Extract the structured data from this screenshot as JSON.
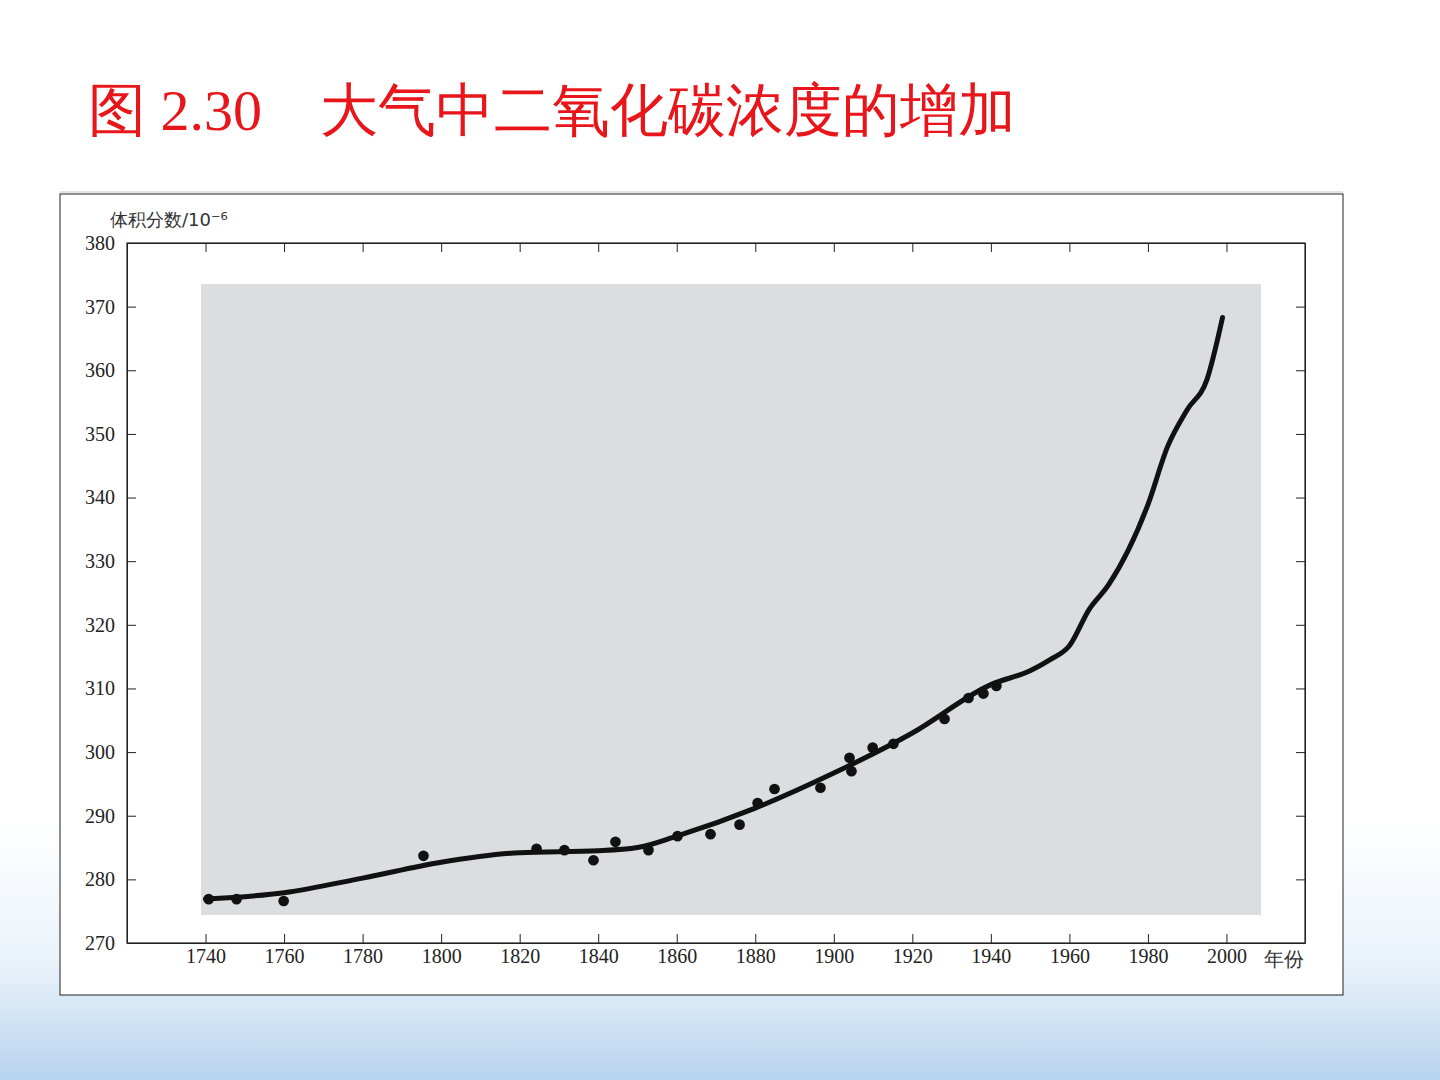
{
  "chart_data": {
    "type": "line",
    "title": "图 2.30    大气中二氧化碳浓度的增加",
    "y_label": "体积分数/10⁻⁶",
    "x_label": "年份",
    "xlim": [
      1720,
      2020
    ],
    "xticks": [
      1740,
      1760,
      1780,
      1800,
      1820,
      1840,
      1860,
      1880,
      1900,
      1920,
      1940,
      1960,
      1980,
      2000
    ],
    "ylim": [
      270,
      380
    ],
    "yticks": [
      270,
      280,
      290,
      300,
      310,
      320,
      330,
      340,
      350,
      360,
      370,
      380
    ],
    "grid": false,
    "series": [
      {
        "type": "scatter",
        "color": "#111111",
        "marker": "circle",
        "x": [
          1740.8,
          1747.9,
          1759.9,
          1795.5,
          1824.3,
          1831.4,
          1838.8,
          1844.4,
          1852.8,
          1860.2,
          1868.6,
          1876.0,
          1880.6,
          1884.9,
          1896.6,
          1904.0,
          1904.5,
          1909.9,
          1915.2,
          1928.2,
          1934.3,
          1938.1,
          1941.4
        ],
        "values": [
          276.9,
          276.9,
          276.6,
          283.7,
          284.8,
          284.6,
          283.0,
          285.9,
          284.6,
          286.8,
          287.1,
          288.6,
          292.0,
          294.2,
          294.4,
          299.1,
          297.0,
          300.7,
          301.3,
          305.2,
          308.5,
          309.2,
          310.4
        ]
      },
      {
        "type": "line",
        "color": "#111111",
        "line_style": "solid",
        "x": [
          1740,
          1760,
          1780,
          1800,
          1820,
          1840,
          1850,
          1860,
          1880,
          1900,
          1920,
          1940,
          1950,
          1955,
          1960,
          1965,
          1970,
          1980,
          1985,
          1990,
          1995,
          1999
        ],
        "values": [
          276.9,
          277.9,
          280.2,
          282.7,
          284.2,
          284.5,
          285.0,
          286.8,
          291.2,
          296.7,
          303.0,
          310.6,
          312.8,
          314.5,
          316.7,
          322.4,
          326.3,
          338.9,
          348.0,
          353.8,
          358.5,
          368.3
        ]
      }
    ]
  }
}
